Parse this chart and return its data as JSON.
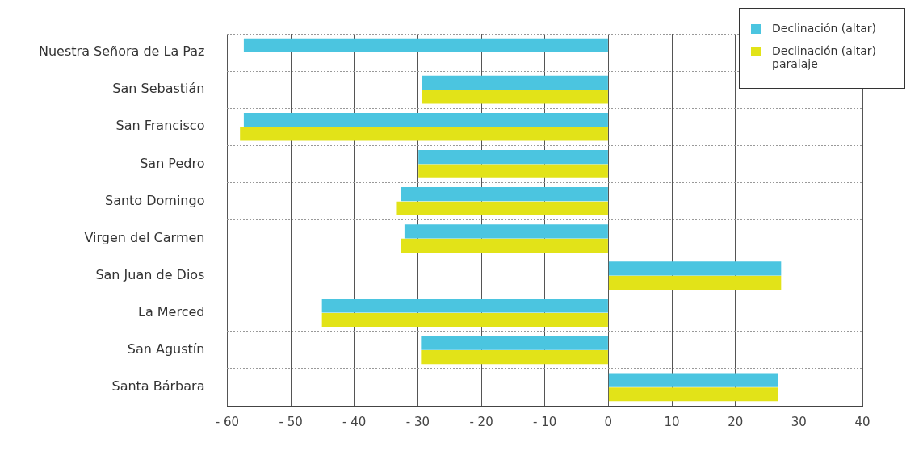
{
  "chart_data": {
    "type": "bar",
    "orientation": "horizontal",
    "categories": [
      "Nuestra Señora de La Paz",
      "San Sebastián",
      "San Francisco",
      "San Pedro",
      "Santo Domingo",
      "Virgen del Carmen",
      "San Juan de Dios",
      "La Merced",
      "San Agustín",
      "Santa Bárbara"
    ],
    "series": [
      {
        "name": "Declinación (altar)",
        "color": "#4bc5e0",
        "values": [
          -57.4,
          -29.3,
          -57.4,
          -29.9,
          -32.7,
          -32.1,
          27.2,
          -45.1,
          -29.5,
          26.7
        ]
      },
      {
        "name": "Declinación (altar) paralaje",
        "color": "#e2e318",
        "values": [
          null,
          -29.3,
          -58.0,
          -29.9,
          -33.3,
          -32.7,
          27.2,
          -45.1,
          -29.5,
          26.7
        ]
      }
    ],
    "xlim": [
      -60,
      40
    ],
    "xticks": [
      {
        "value": -60,
        "label": "- 60"
      },
      {
        "value": -50,
        "label": "- 50"
      },
      {
        "value": -40,
        "label": "- 40"
      },
      {
        "value": -30,
        "label": "- 30"
      },
      {
        "value": -20,
        "label": "- 20"
      },
      {
        "value": -10,
        "label": "- 10"
      },
      0,
      10,
      20,
      30,
      40
    ],
    "grid": true,
    "legend": "top right"
  }
}
